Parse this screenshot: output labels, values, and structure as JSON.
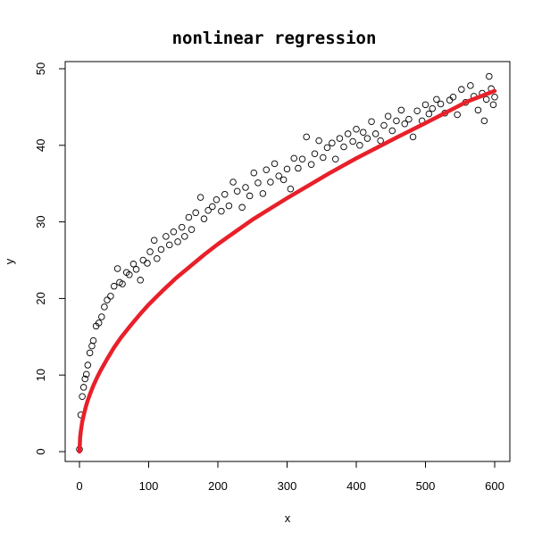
{
  "chart_data": {
    "type": "scatter",
    "title": "nonlinear regression",
    "xlabel": "x",
    "ylabel": "y",
    "xlim": [
      0,
      600
    ],
    "ylim": [
      0,
      50
    ],
    "x_ticks": [
      0,
      100,
      200,
      300,
      400,
      500,
      600
    ],
    "y_ticks": [
      0,
      10,
      20,
      30,
      40,
      50
    ],
    "grid": false,
    "legend": "none",
    "colors": {
      "points": "#000000",
      "fit": "#e8202a"
    },
    "series": [
      {
        "kind": "points",
        "x": [
          0,
          2,
          4,
          6,
          8,
          10,
          12,
          15,
          18,
          20,
          24,
          28,
          32,
          36,
          40,
          45,
          50,
          55,
          58,
          62,
          68,
          72,
          78,
          82,
          88,
          92,
          98,
          102,
          108,
          112,
          118,
          125,
          130,
          136,
          142,
          148,
          152,
          158,
          162,
          168,
          175,
          180,
          186,
          192,
          198,
          205,
          210,
          216,
          222,
          228,
          235,
          240,
          246,
          252,
          258,
          265,
          270,
          276,
          282,
          288,
          295,
          300,
          305,
          310,
          316,
          322,
          328,
          335,
          340,
          346,
          352,
          358,
          365,
          370,
          376,
          382,
          388,
          395,
          400,
          405,
          410,
          416,
          422,
          428,
          435,
          440,
          446,
          452,
          458,
          465,
          470,
          476,
          482,
          488,
          495,
          500,
          505,
          510,
          516,
          522,
          528,
          535,
          540,
          546,
          552,
          558,
          565,
          570,
          576,
          582,
          585,
          588,
          592,
          595,
          598,
          600
        ],
        "y": [
          0.3,
          4.8,
          7.2,
          8.4,
          9.5,
          10.1,
          11.3,
          12.9,
          13.8,
          14.5,
          16.4,
          16.8,
          17.6,
          18.9,
          19.8,
          20.3,
          21.6,
          23.9,
          22.1,
          21.9,
          23.4,
          23.1,
          24.5,
          23.8,
          22.4,
          25.0,
          24.6,
          26.1,
          27.6,
          25.2,
          26.4,
          28.1,
          27.0,
          28.7,
          27.4,
          29.3,
          28.1,
          30.6,
          29.0,
          31.2,
          33.2,
          30.4,
          31.5,
          32.0,
          32.9,
          31.4,
          33.6,
          32.1,
          35.2,
          34.0,
          31.9,
          34.5,
          33.4,
          36.4,
          35.1,
          33.7,
          36.8,
          35.2,
          37.6,
          36.0,
          35.5,
          36.9,
          34.3,
          38.3,
          37.0,
          38.2,
          41.1,
          37.5,
          38.9,
          40.6,
          38.4,
          39.7,
          40.3,
          38.2,
          40.9,
          39.8,
          41.5,
          40.5,
          42.1,
          40.0,
          41.7,
          40.9,
          43.1,
          41.5,
          40.6,
          42.6,
          43.8,
          41.9,
          43.2,
          44.6,
          42.8,
          43.4,
          41.1,
          44.5,
          43.2,
          45.3,
          44.1,
          44.8,
          46.0,
          45.4,
          44.2,
          45.9,
          46.3,
          44.0,
          47.3,
          45.6,
          47.8,
          46.4,
          44.6,
          46.8,
          43.2,
          46.0,
          49.0,
          47.4,
          45.3,
          46.3
        ]
      },
      {
        "kind": "fit",
        "x": [
          0,
          1,
          2,
          4,
          6,
          9,
          12,
          16,
          20,
          25,
          30,
          40,
          50,
          60,
          75,
          90,
          100,
          120,
          140,
          160,
          180,
          200,
          225,
          250,
          275,
          300,
          330,
          360,
          400,
          430,
          460,
          500,
          530,
          560,
          600
        ],
        "y": [
          0,
          1.9,
          2.7,
          3.9,
          4.7,
          5.8,
          6.7,
          7.7,
          8.6,
          9.6,
          10.5,
          12.1,
          13.6,
          14.9,
          16.6,
          18.2,
          19.2,
          21.0,
          22.7,
          24.2,
          25.7,
          27.1,
          28.7,
          30.3,
          31.7,
          33.1,
          34.7,
          36.3,
          38.3,
          39.7,
          41.1,
          42.9,
          44.3,
          45.7,
          47.1
        ]
      }
    ]
  }
}
